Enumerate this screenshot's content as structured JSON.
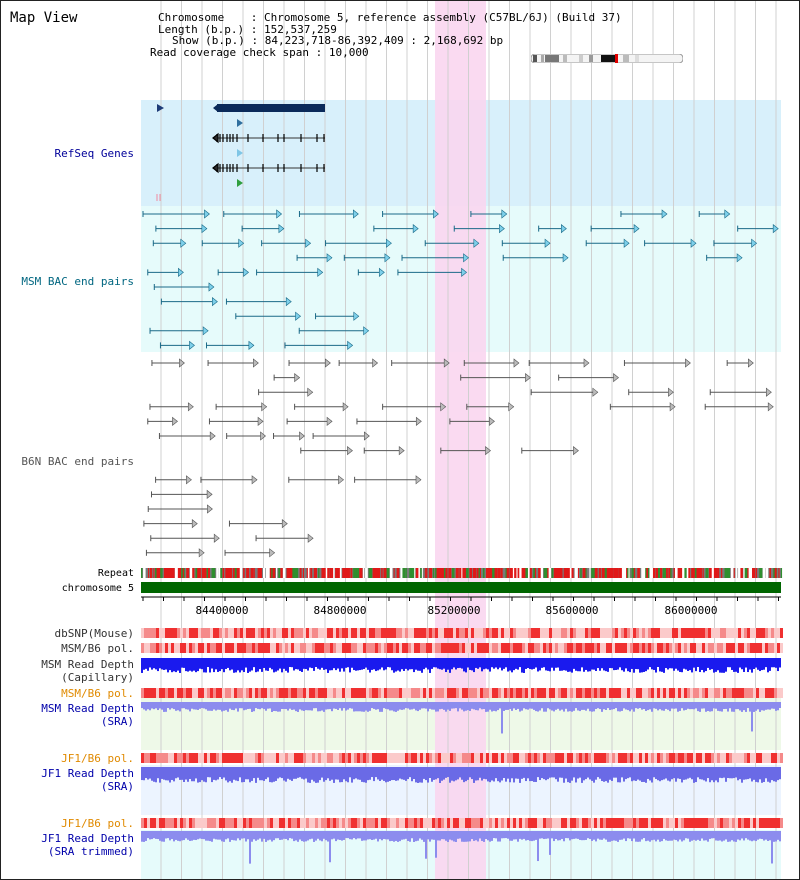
{
  "header": {
    "title": "Map View",
    "chromosome_label": "Chromosome",
    "chromosome_value": "Chromosome 5, reference assembly (C57BL/6J) (Build 37)",
    "length_label": "Length (b.p.)",
    "length_value": "152,537,259",
    "show_label": "Show (b.p.)",
    "show_value": "84,223,718-86,392,409 : 2,168,692 bp",
    "coverage_label": "Read coverage check span",
    "coverage_value": "10,000"
  },
  "tracks": {
    "refseq": "RefSeq Genes",
    "msm_bac": "MSM BAC end pairs",
    "b6n_bac": "B6N BAC end pairs",
    "repeat": "Repeat",
    "chromosome": "chromosome 5",
    "dbsnp": "dbSNP(Mouse)",
    "msm_b6_pol_1": "MSM/B6 pol.",
    "msm_depth_cap_1": "MSM Read Depth",
    "msm_depth_cap_2": "(Capillary)",
    "msm_b6_pol_2": "MSM/B6 pol.",
    "msm_depth_sra_1": "MSM Read Depth",
    "msm_depth_sra_2": "(SRA)",
    "jf1_pol_1": "JF1/B6 pol.",
    "jf1_depth_sra_1": "JF1 Read Depth",
    "jf1_depth_sra_2": "(SRA)",
    "jf1_pol_2": "JF1/B6 pol.",
    "jf1_depth_trim_1": "JF1 Read Depth",
    "jf1_depth_trim_2": "(SRA trimmed)"
  },
  "axis": {
    "ticks": [
      "84400000",
      "84800000",
      "85200000",
      "85600000",
      "86000000"
    ]
  },
  "colors": {
    "refseq_label": "#000099",
    "msm_bac_label": "#006680",
    "b6n_bac_label": "#555555",
    "orange_label": "#e08a00",
    "blue_label": "#0000aa",
    "highlight": "#f9d6f0",
    "chromosome_bar": "#006600"
  }
}
